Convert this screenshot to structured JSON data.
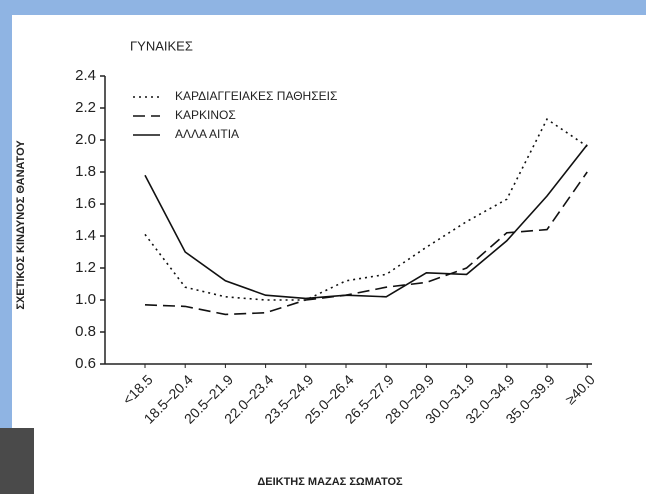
{
  "chart_data": {
    "type": "line",
    "title": "ΓΥΝΑΙΚΕΣ",
    "y_label": "ΣΧΕΤΙΚΟΣ ΚΙΝΔΥΝΟΣ ΘΑΝΑΤΟΥ",
    "x_label": "ΔΕΙΚΤΗΣ ΜΑΖΑΣ ΣΩΜΑΤΟΣ",
    "categories": [
      "<18.5",
      "18.5–20.4",
      "20.5–21.9",
      "22.0–23.4",
      "23.5–24.9",
      "25.0–26.4",
      "26.5–27.9",
      "28.0–29.9",
      "30.0–31.9",
      "32.0–34.9",
      "35.0–39.9",
      "≥40.0"
    ],
    "series": [
      {
        "name": "ΚΑΡΔΙΑΓΓΕΙΑΚΕΣ ΠΑΘΗΣΕΙΣ",
        "color": "#111111",
        "dash": "2,4",
        "values": [
          1.41,
          1.08,
          1.02,
          1.0,
          1.0,
          1.12,
          1.16,
          1.33,
          1.49,
          1.63,
          2.13,
          1.96
        ]
      },
      {
        "name": "ΚΑΡΚΙΝΟΣ",
        "color": "#111111",
        "dash": "12,6",
        "values": [
          0.97,
          0.96,
          0.91,
          0.92,
          1.0,
          1.03,
          1.08,
          1.11,
          1.2,
          1.42,
          1.44,
          1.8
        ]
      },
      {
        "name": "ΑΛΛΑ ΑΙΤΙΑ",
        "color": "#111111",
        "dash": "none",
        "values": [
          1.78,
          1.3,
          1.12,
          1.03,
          1.01,
          1.03,
          1.02,
          1.17,
          1.16,
          1.37,
          1.65,
          1.97
        ]
      }
    ],
    "ylim": [
      0.6,
      2.4
    ],
    "yticks": [
      0.6,
      0.8,
      {
        "value": 1.0,
        "label": "1.0"
      },
      1.2,
      1.4,
      1.6,
      1.8,
      {
        "value": 2.0,
        "label": "2.0"
      },
      2.2,
      2.4
    ],
    "grid": false
  }
}
